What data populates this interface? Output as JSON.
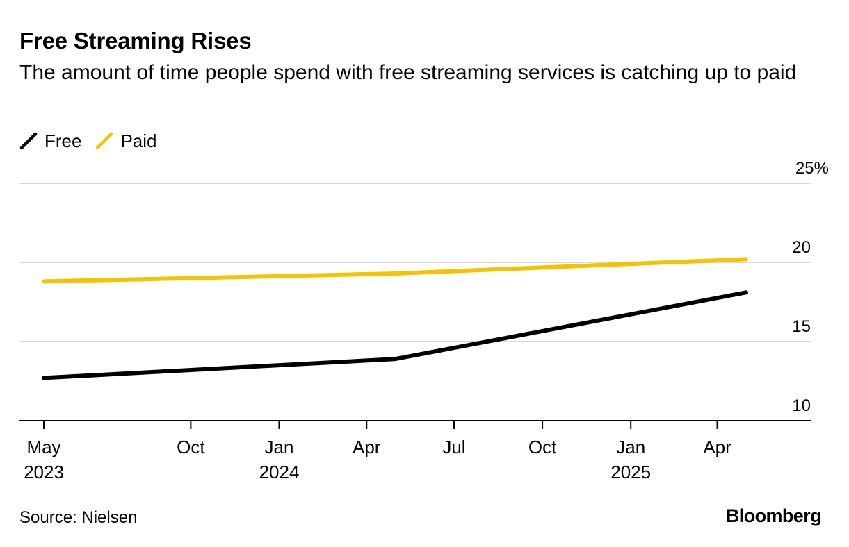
{
  "header": {
    "title": "Free Streaming Rises",
    "subtitle": "The amount of time people spend with free streaming services is catching up to paid"
  },
  "footer": {
    "source": "Source: Nielsen",
    "logo": "Bloomberg"
  },
  "chart_data": {
    "type": "line",
    "title": "Free Streaming Rises",
    "subtitle": "The amount of time people spend with free streaming services is catching up to paid",
    "xlabel": "",
    "ylabel": "",
    "ylim": [
      10,
      25
    ],
    "xlim": [
      "2023-04-01",
      "2025-07-15"
    ],
    "y_ticks": [
      {
        "value": 10,
        "label": "10"
      },
      {
        "value": 15,
        "label": "15"
      },
      {
        "value": 20,
        "label": "20"
      },
      {
        "value": 25,
        "label": "25%"
      }
    ],
    "x_ticks": [
      {
        "date": "2023-05-01",
        "line1": "May",
        "line2": "2023"
      },
      {
        "date": "2023-10-01",
        "line1": "Oct",
        "line2": ""
      },
      {
        "date": "2024-01-01",
        "line1": "Jan",
        "line2": "2024"
      },
      {
        "date": "2024-04-01",
        "line1": "Apr",
        "line2": ""
      },
      {
        "date": "2024-07-01",
        "line1": "Jul",
        "line2": ""
      },
      {
        "date": "2024-10-01",
        "line1": "Oct",
        "line2": ""
      },
      {
        "date": "2025-01-01",
        "line1": "Jan",
        "line2": "2025"
      },
      {
        "date": "2025-04-01",
        "line1": "Apr",
        "line2": ""
      }
    ],
    "grid": true,
    "legend_position": "top-left",
    "series": [
      {
        "name": "Free",
        "color": "#000000",
        "points": [
          {
            "x": "2023-05-01",
            "y": 12.7
          },
          {
            "x": "2024-05-01",
            "y": 13.9
          },
          {
            "x": "2025-05-01",
            "y": 18.1
          }
        ]
      },
      {
        "name": "Paid",
        "color": "#f5c400",
        "points": [
          {
            "x": "2023-05-01",
            "y": 18.8
          },
          {
            "x": "2024-05-01",
            "y": 19.3
          },
          {
            "x": "2025-05-01",
            "y": 20.2
          }
        ]
      }
    ]
  }
}
